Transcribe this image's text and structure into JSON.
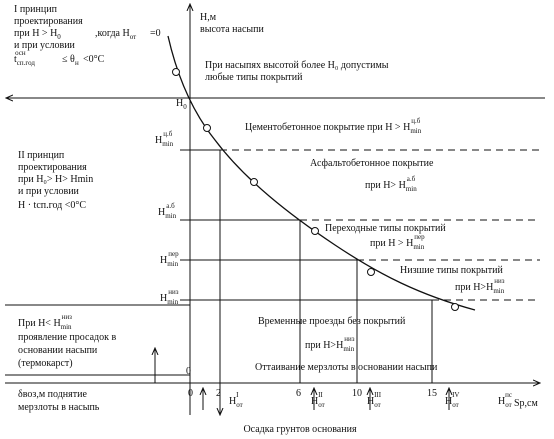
{
  "y_axis": {
    "label": "H,м",
    "sublabel": "высота насыпи",
    "h0": {
      "base": "H",
      "sub": "0"
    }
  },
  "principle_1": [
    "I принцип",
    "проектирования",
    {
      "text": "при H > H",
      "base": "",
      "sub": "0"
    },
    {
      "text": ",когда H",
      "base": "",
      "sub": "от"
    },
    "=0",
    "и при условии",
    {
      "text": "t",
      "base": "",
      "sub": "сп.год",
      "sup": "осн"
    },
    "≤ θ",
    {
      "text": "",
      "base": "",
      "sub": "н"
    },
    "<0°C"
  ],
  "principle_2": [
    "II принцип",
    "проектирования",
    "при H₀> H> Hmin",
    "и при условии",
    "H  · tсп.год <0°C"
  ],
  "subsidence": [
    {
      "text": "При H< ",
      "base": "H",
      "sub": "min",
      "sup": "низ"
    },
    "проявление просадок в",
    "основании насыпи",
    "(термокарст)"
  ],
  "uplift": [
    "δвоз,м поднятие",
    "мерзлоты в насыпь"
  ],
  "zones": [
    "При насыпях высотой более H₀ допустимы",
    "любые типы покрытий",
    {
      "text": "Цементобетонное покрытие при H > ",
      "base": "H",
      "sub": "min",
      "sup": "ц.б"
    },
    "Асфальтобетонное покрытие",
    {
      "text": "при H> ",
      "base": "H",
      "sub": "min",
      "sup": "а.б"
    },
    "Переходные типы покрытий",
    {
      "text": "при H > ",
      "base": "H",
      "sub": "min",
      "sup": "пер"
    },
    "Низшие типы покрытий",
    {
      "text": "при H>",
      "base": "H",
      "sub": "min",
      "sup": "низ"
    },
    "Временные проезды без покрытий",
    {
      "text": "при  H>",
      "base": "H",
      "sub": "min",
      "sup": "низ"
    },
    "Оттаивание мерзлоты в основании насыпи"
  ],
  "levels": [
    {
      "base": "H",
      "sub": "min",
      "sup": "ц.б"
    },
    {
      "base": "H",
      "sub": "min",
      "sup": "а.б"
    },
    {
      "base": "H",
      "sub": "min",
      "sup": "пер"
    },
    {
      "base": "H",
      "sub": "min",
      "sup": "низ"
    }
  ],
  "x_axis": {
    "origin": "0",
    "thaw_origin": "0",
    "ticks": [
      "2",
      "6",
      "10",
      "15"
    ],
    "unit": "Sp,см",
    "caption": "Осадка грунтов основания"
  },
  "settlements": [
    {
      "base": "H",
      "sub": "от",
      "sup": "I"
    },
    {
      "base": "H",
      "sub": "от",
      "sup": "II"
    },
    {
      "base": "H",
      "sub": "от",
      "sup": "III"
    },
    {
      "base": "H",
      "sub": "от",
      "sup": "IV"
    },
    {
      "base": "H",
      "sub": "от",
      "sup": "пс"
    }
  ]
}
